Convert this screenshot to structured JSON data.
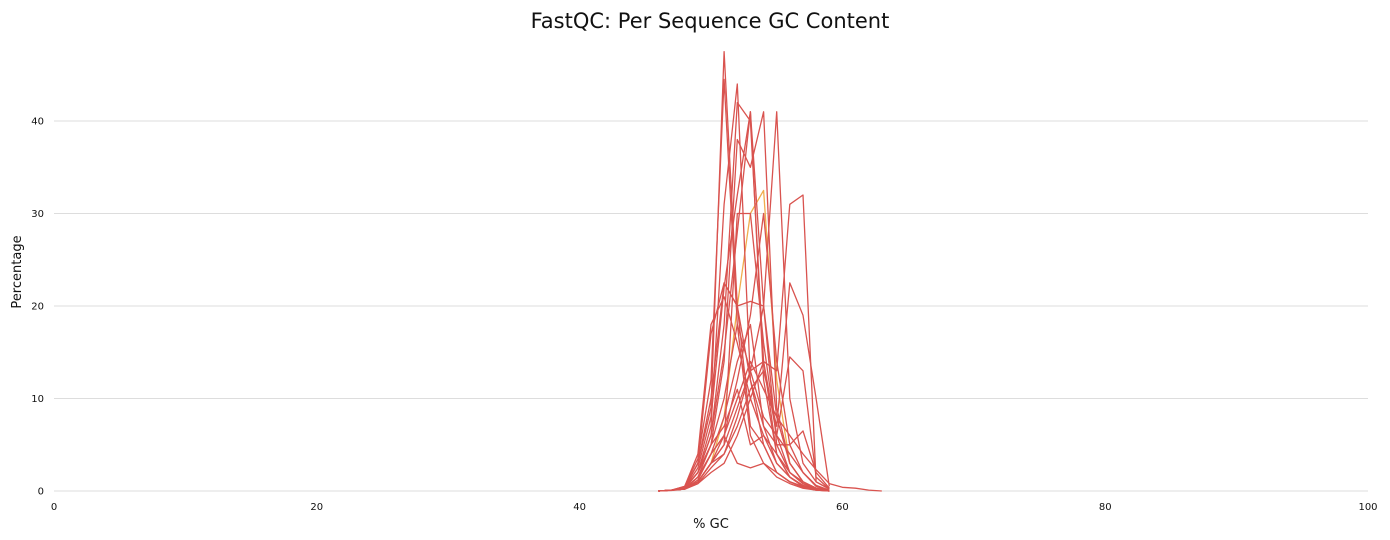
{
  "chart_data": {
    "type": "line",
    "title": "FastQC: Per Sequence GC Content",
    "xlabel": "% GC",
    "ylabel": "Percentage",
    "xlim": [
      0,
      100
    ],
    "ylim": [
      0,
      48
    ],
    "xticks": [
      0,
      20,
      40,
      60,
      80,
      100
    ],
    "yticks": [
      0,
      10,
      20,
      30,
      40
    ],
    "grid": "horizontal",
    "legend": "none",
    "colors": {
      "fail": "#d9534f",
      "warn": "#f0ad4e",
      "grid": "#dddddd"
    },
    "series": [
      {
        "status": "fail",
        "x": [
          46,
          47,
          48,
          49,
          50,
          51,
          52,
          53,
          54,
          55,
          56,
          57,
          58,
          59
        ],
        "values": [
          0,
          0.1,
          0.4,
          3,
          9,
          47.5,
          20,
          7,
          5,
          2,
          1,
          0.5,
          0.2,
          0
        ]
      },
      {
        "status": "fail",
        "x": [
          46,
          47,
          48,
          49,
          50,
          51,
          52,
          53,
          54,
          55,
          56,
          57,
          58,
          59
        ],
        "values": [
          0,
          0.1,
          0.5,
          3.5,
          12,
          44.5,
          18,
          6,
          3,
          1.5,
          0.8,
          0.3,
          0.1,
          0
        ]
      },
      {
        "status": "fail",
        "x": [
          46,
          47,
          48,
          49,
          50,
          51,
          52,
          53,
          54,
          55,
          56,
          57,
          58,
          59
        ],
        "values": [
          0,
          0.1,
          0.3,
          2,
          7,
          31,
          44,
          12,
          5,
          2,
          1,
          0.4,
          0.1,
          0
        ]
      },
      {
        "status": "fail",
        "x": [
          46,
          47,
          48,
          49,
          50,
          51,
          52,
          53,
          54,
          55,
          56,
          57,
          58,
          59
        ],
        "values": [
          0,
          0.1,
          0.3,
          2,
          6,
          18,
          42,
          40,
          14,
          4,
          1.5,
          0.6,
          0.2,
          0
        ]
      },
      {
        "status": "fail",
        "x": [
          46,
          47,
          48,
          49,
          50,
          51,
          52,
          53,
          54,
          55,
          56,
          57,
          58,
          59
        ],
        "values": [
          0,
          0.1,
          0.3,
          2.5,
          8,
          22,
          32,
          41,
          12,
          4,
          1.5,
          0.5,
          0.2,
          0
        ]
      },
      {
        "status": "fail",
        "x": [
          46,
          47,
          48,
          49,
          50,
          51,
          52,
          53,
          54,
          55,
          56,
          57,
          58,
          59
        ],
        "values": [
          0,
          0.1,
          0.2,
          1.5,
          5,
          14,
          38,
          35,
          41,
          9,
          3,
          1,
          0.3,
          0
        ]
      },
      {
        "status": "fail",
        "x": [
          46,
          47,
          48,
          49,
          50,
          51,
          52,
          53,
          54,
          55,
          56,
          57,
          58,
          59
        ],
        "values": [
          0,
          0.1,
          0.3,
          2,
          6,
          15,
          28,
          41,
          20,
          8,
          3,
          1,
          0.3,
          0
        ]
      },
      {
        "status": "fail",
        "x": [
          46,
          47,
          48,
          49,
          50,
          51,
          52,
          53,
          54,
          55,
          56,
          57,
          58,
          59
        ],
        "values": [
          0,
          0.1,
          0.4,
          3,
          10,
          22.5,
          20,
          20.5,
          20,
          5,
          2,
          0.8,
          0.3,
          0
        ]
      },
      {
        "status": "fail",
        "x": [
          46,
          47,
          48,
          49,
          50,
          51,
          52,
          53,
          54,
          55,
          56,
          57,
          58,
          59
        ],
        "values": [
          0,
          0.1,
          0.5,
          4,
          18,
          21,
          16,
          10,
          6,
          3,
          1.5,
          0.6,
          0.2,
          0
        ]
      },
      {
        "status": "fail",
        "x": [
          46,
          47,
          48,
          49,
          50,
          51,
          52,
          53,
          54,
          55,
          56,
          57,
          58,
          59
        ],
        "values": [
          0,
          0.1,
          0.4,
          3,
          17,
          22.5,
          20,
          12,
          7,
          3,
          1.5,
          0.5,
          0.2,
          0
        ]
      },
      {
        "status": "fail",
        "x": [
          46,
          47,
          48,
          49,
          50,
          51,
          52,
          53,
          54,
          55,
          56,
          57,
          58,
          59
        ],
        "values": [
          0,
          0.1,
          0.2,
          1,
          3,
          5,
          30,
          30,
          16,
          6,
          2,
          1,
          0.3,
          0
        ]
      },
      {
        "status": "fail",
        "x": [
          46,
          47,
          48,
          49,
          50,
          51,
          52,
          53,
          54,
          55,
          56,
          57,
          58,
          59
        ],
        "values": [
          0,
          0.1,
          0.2,
          1.2,
          4,
          6,
          12,
          19,
          30,
          14,
          5,
          2,
          0.5,
          0
        ]
      },
      {
        "status": "fail",
        "x": [
          46,
          47,
          48,
          49,
          50,
          51,
          52,
          53,
          54,
          55,
          56,
          57,
          58,
          59
        ],
        "values": [
          0,
          0.1,
          0.2,
          1,
          3,
          4,
          8,
          13,
          20,
          41,
          10,
          3,
          1,
          0.2
        ]
      },
      {
        "status": "fail",
        "x": [
          46,
          47,
          48,
          49,
          50,
          51,
          52,
          53,
          54,
          55,
          56,
          57,
          58,
          59
        ],
        "values": [
          0,
          0.1,
          0.2,
          0.8,
          2,
          3,
          6,
          10,
          14,
          13,
          31,
          32,
          1,
          0.2
        ]
      },
      {
        "status": "fail",
        "x": [
          46,
          47,
          48,
          49,
          50,
          51,
          52,
          53,
          54,
          55,
          56,
          57,
          58,
          59
        ],
        "values": [
          0,
          0.1,
          0.2,
          0.8,
          2.5,
          4,
          7,
          11,
          13,
          7,
          22.5,
          19,
          10,
          0.5
        ]
      },
      {
        "status": "fail",
        "x": [
          46,
          47,
          48,
          49,
          50,
          51,
          52,
          53,
          54,
          55,
          56,
          57,
          58,
          59
        ],
        "values": [
          0,
          0.1,
          0.2,
          1,
          3,
          5,
          9,
          13,
          14,
          6,
          14.5,
          13,
          1.5,
          0.2
        ]
      },
      {
        "status": "fail",
        "x": [
          46,
          47,
          48,
          49,
          50,
          51,
          52,
          53,
          54,
          55,
          56,
          57,
          58,
          59
        ],
        "values": [
          0,
          0.1,
          0.3,
          1.5,
          4,
          8,
          14,
          18,
          7,
          5,
          5,
          6.5,
          2,
          0.3
        ]
      },
      {
        "status": "fail",
        "x": [
          46,
          47,
          48,
          49,
          50,
          51,
          52,
          53,
          54,
          55,
          56,
          57,
          58,
          59
        ],
        "values": [
          0,
          0.1,
          0.3,
          2,
          5,
          10,
          18,
          13,
          8,
          6,
          4,
          2,
          0.6,
          0.1
        ]
      },
      {
        "status": "fail",
        "x": [
          46,
          47,
          48,
          49,
          50,
          51,
          52,
          53,
          54,
          55,
          56,
          57,
          58,
          59
        ],
        "values": [
          0,
          0.1,
          0.3,
          1.5,
          4,
          6,
          3,
          2.5,
          3,
          2,
          1,
          0.4,
          0.1,
          0
        ]
      },
      {
        "status": "fail",
        "x": [
          46,
          47,
          48,
          49,
          50,
          51,
          52,
          53,
          54,
          55,
          56,
          57,
          58,
          59
        ],
        "values": [
          0,
          0.1,
          0.4,
          2,
          5,
          7,
          11,
          5,
          6,
          4,
          2,
          0.8,
          0.2,
          0
        ]
      },
      {
        "status": "fail",
        "x": [
          46,
          47,
          48,
          49,
          50,
          51,
          52,
          53,
          54,
          55,
          56,
          57,
          58,
          59,
          60,
          61,
          62,
          63
        ],
        "values": [
          0,
          0.05,
          0.2,
          1,
          3,
          6,
          10,
          14,
          11,
          8,
          6,
          4,
          2.3,
          0.8,
          0.4,
          0.3,
          0.1,
          0
        ]
      },
      {
        "status": "warn",
        "x": [
          46,
          47,
          48,
          49,
          50,
          51,
          52,
          53,
          54,
          55,
          56,
          57,
          58,
          59
        ],
        "values": [
          0,
          0.1,
          0.2,
          1,
          3,
          8,
          20,
          30,
          32.5,
          12,
          3,
          1,
          0.3,
          0
        ]
      }
    ]
  }
}
